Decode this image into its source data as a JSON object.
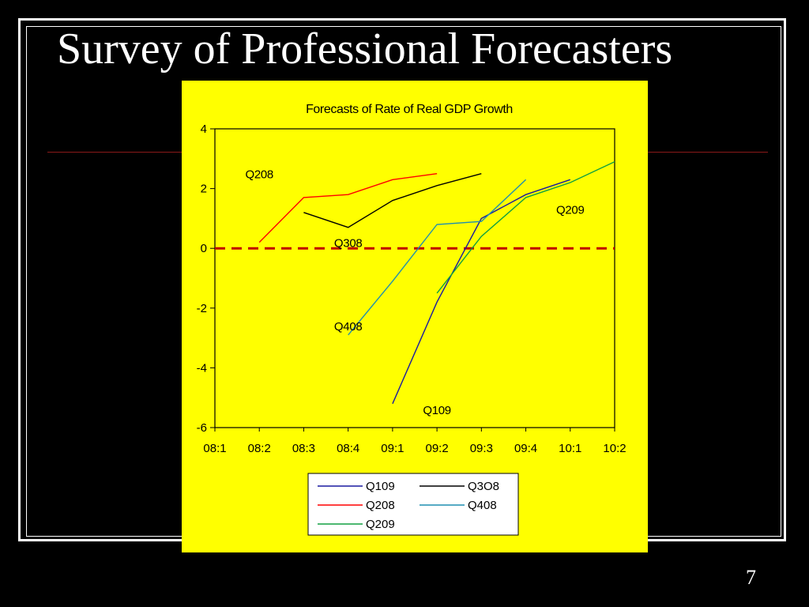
{
  "slide": {
    "title": "Survey of Professional Forecasters",
    "page_number": "7"
  },
  "colors": {
    "background": "#000000",
    "panel": "#ffff00",
    "rule": "#8b1a1a",
    "zero_line": "#c00000"
  },
  "chart_data": {
    "type": "line",
    "title": "Forecasts of Rate of Real GDP Growth",
    "xlabel": "",
    "ylabel": "",
    "x_ticks": [
      "08:1",
      "08:2",
      "08:3",
      "08:4",
      "09:1",
      "09:2",
      "09:3",
      "09:4",
      "10:1",
      "10:2"
    ],
    "y_ticks": [
      4,
      2,
      0,
      -2,
      -4,
      -6
    ],
    "ylim": [
      -6,
      4
    ],
    "grid": false,
    "reference_line": {
      "y": 0,
      "style": "dashed",
      "color": "#c00000"
    },
    "series": [
      {
        "name": "Q109",
        "color": "#1a1aa0",
        "x": [
          "09:1",
          "09:2",
          "09:3",
          "09:4",
          "10:1"
        ],
        "values": [
          -5.2,
          -1.8,
          1.0,
          1.8,
          2.3
        ]
      },
      {
        "name": "Q3O8",
        "color": "#000000",
        "x": [
          "08:3",
          "08:4",
          "09:1",
          "09:2",
          "09:3"
        ],
        "values": [
          1.2,
          0.7,
          1.6,
          2.1,
          2.5
        ]
      },
      {
        "name": "Q208",
        "color": "#ff0000",
        "x": [
          "08:2",
          "08:3",
          "08:4",
          "09:1",
          "09:2"
        ],
        "values": [
          0.2,
          1.7,
          1.8,
          2.3,
          2.5
        ]
      },
      {
        "name": "Q408",
        "color": "#1f8fb0",
        "x": [
          "08:4",
          "09:1",
          "09:2",
          "09:3",
          "09:4"
        ],
        "values": [
          -2.9,
          -1.1,
          0.8,
          0.9,
          2.3
        ]
      },
      {
        "name": "Q209",
        "color": "#10a040",
        "x": [
          "09:2",
          "09:3",
          "09:4",
          "10:1",
          "10:2"
        ],
        "values": [
          -1.5,
          0.4,
          1.7,
          2.2,
          2.9
        ]
      }
    ],
    "annotations": [
      {
        "text": "Q208",
        "x": "08:2",
        "y": 2.35
      },
      {
        "text": "Q308",
        "x": "08:4",
        "y": 0.05
      },
      {
        "text": "Q408",
        "x": "08:4",
        "y": -2.75
      },
      {
        "text": "Q109",
        "x": "09:2",
        "y": -5.55
      },
      {
        "text": "Q209",
        "x": "10:1",
        "y": 1.15
      }
    ],
    "legend": {
      "placement": "bottom-center",
      "entries": [
        "Q109",
        "Q3O8",
        "Q208",
        "Q408",
        "Q209"
      ]
    }
  }
}
